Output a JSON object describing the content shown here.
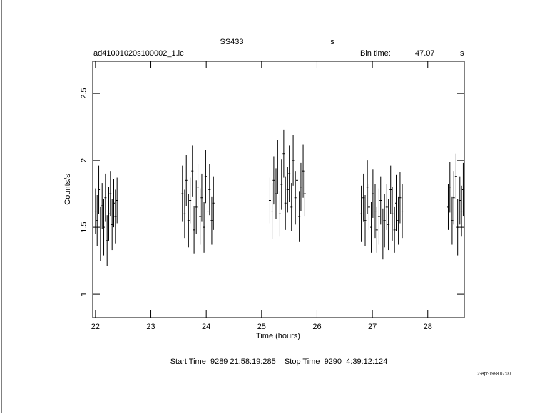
{
  "chart_data": {
    "type": "errorbar",
    "title": "SS433",
    "title_unit": "s",
    "file_name": "ad41001020s100002_1.lc",
    "bin_time_label": "Bin time:",
    "bin_time": "47.07",
    "bin_time_unit": "s",
    "x_label": "Time (hours)",
    "y_label": "Counts/s",
    "footer": "Start Time  9289 21:58:19:285    Stop Time  9290  4:39:12:124",
    "date_stamp": "2-Apr-1998 07:00",
    "color": "#000000",
    "xlim": [
      21.95,
      28.66
    ],
    "ylim": [
      0.825,
      2.74
    ],
    "xticks": [
      22,
      23,
      24,
      25,
      26,
      27,
      28
    ],
    "yticks": [
      1,
      1.5,
      2,
      2.5
    ],
    "x": [
      22.0,
      22.03,
      22.06,
      22.09,
      22.12,
      22.15,
      22.18,
      22.21,
      22.24,
      22.27,
      22.3,
      22.33,
      22.36,
      22.39,
      23.57,
      23.61,
      23.64,
      23.68,
      23.71,
      23.75,
      23.78,
      23.82,
      23.85,
      23.89,
      23.92,
      23.96,
      23.99,
      24.03,
      24.06,
      24.1,
      24.13,
      25.15,
      25.19,
      25.22,
      25.26,
      25.29,
      25.33,
      25.36,
      25.4,
      25.43,
      25.47,
      25.5,
      25.54,
      25.57,
      25.61,
      25.64,
      25.68,
      25.71,
      25.75,
      25.78,
      26.8,
      26.84,
      26.87,
      26.91,
      26.94,
      26.98,
      27.01,
      27.05,
      27.08,
      27.12,
      27.15,
      27.19,
      27.22,
      27.26,
      27.29,
      27.33,
      27.36,
      27.4,
      27.43,
      27.47,
      27.5,
      27.54,
      28.37,
      28.4,
      28.44,
      28.47,
      28.51,
      28.54,
      28.58,
      28.61,
      28.64
    ],
    "values": [
      1.62,
      1.55,
      1.78,
      1.45,
      1.66,
      1.5,
      1.72,
      1.4,
      1.6,
      1.75,
      1.52,
      1.68,
      1.58,
      1.7,
      1.75,
      1.6,
      1.85,
      1.55,
      1.7,
      1.92,
      1.48,
      1.65,
      1.8,
      1.58,
      1.72,
      1.5,
      1.88,
      1.62,
      1.78,
      1.55,
      1.68,
      1.7,
      1.62,
      1.85,
      1.75,
      1.95,
      1.6,
      1.82,
      2.05,
      1.68,
      1.78,
      1.9,
      1.65,
      2.0,
      1.72,
      1.85,
      1.58,
      1.8,
      1.92,
      1.75,
      1.6,
      1.72,
      1.55,
      1.8,
      1.65,
      1.5,
      1.75,
      1.62,
      1.48,
      1.58,
      1.7,
      1.45,
      1.55,
      1.65,
      1.52,
      1.78,
      1.6,
      1.48,
      1.68,
      1.55,
      1.72,
      1.62,
      1.65,
      1.8,
      1.55,
      1.72,
      1.88,
      1.5,
      1.7,
      1.62,
      1.78
    ],
    "errors": [
      0.17,
      0.19,
      0.18,
      0.2,
      0.17,
      0.21,
      0.18,
      0.19,
      0.2,
      0.17,
      0.19,
      0.18,
      0.2,
      0.17,
      0.21,
      0.18,
      0.19,
      0.2,
      0.17,
      0.19,
      0.18,
      0.2,
      0.17,
      0.21,
      0.18,
      0.19,
      0.2,
      0.17,
      0.19,
      0.18,
      0.2,
      0.17,
      0.21,
      0.18,
      0.19,
      0.2,
      0.17,
      0.19,
      0.18,
      0.2,
      0.17,
      0.21,
      0.18,
      0.19,
      0.2,
      0.17,
      0.19,
      0.18,
      0.2,
      0.17,
      0.21,
      0.18,
      0.19,
      0.2,
      0.17,
      0.19,
      0.18,
      0.2,
      0.17,
      0.21,
      0.18,
      0.19,
      0.2,
      0.17,
      0.19,
      0.18,
      0.2,
      0.17,
      0.21,
      0.18,
      0.19,
      0.2,
      0.17,
      0.19,
      0.18,
      0.2,
      0.17,
      0.21,
      0.18,
      0.19,
      0.2
    ]
  }
}
